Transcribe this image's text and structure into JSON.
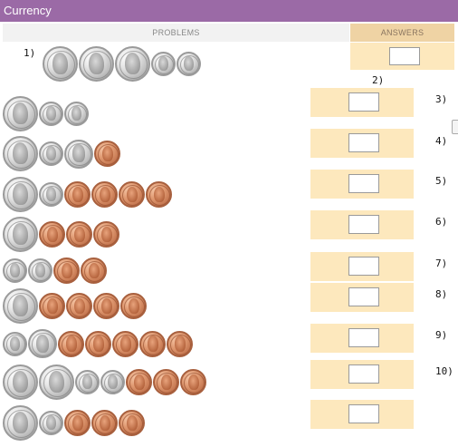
{
  "title": "Currency",
  "headers": {
    "problems": "PROBLEMS",
    "answers": "ANSWERS"
  },
  "coin_icons": {
    "quarter": "quarter-coin-icon",
    "dime": "dime-coin-icon",
    "nickel": "nickel-coin-icon",
    "penny": "penny-coin-icon"
  },
  "colors": {
    "title_bar": "#9b6aa6",
    "answer_header": "#efd3a4",
    "answer_cell": "#fde8bd",
    "problems_header": "#f2f2f2"
  },
  "problems": [
    {
      "label": "1)",
      "coins": [
        "quarter",
        "quarter",
        "quarter",
        "dime",
        "dime"
      ],
      "answer": ""
    },
    {
      "label": "2)",
      "coins": [
        "quarter",
        "dime",
        "dime"
      ],
      "answer": ""
    },
    {
      "label": "3)",
      "coins": [
        "quarter",
        "dime",
        "nickel",
        "penny"
      ],
      "answer": ""
    },
    {
      "label": "4)",
      "coins": [
        "quarter",
        "dime",
        "penny",
        "penny",
        "penny",
        "penny"
      ],
      "answer": ""
    },
    {
      "label": "5)",
      "coins": [
        "quarter",
        "penny",
        "penny",
        "penny"
      ],
      "answer": ""
    },
    {
      "label": "6)",
      "coins": [
        "dime",
        "dime",
        "penny",
        "penny"
      ],
      "answer": ""
    },
    {
      "label": "7)",
      "coins": [
        "quarter",
        "penny",
        "penny",
        "penny",
        "penny"
      ],
      "answer": ""
    },
    {
      "label": "8)",
      "coins": [
        "dime",
        "nickel",
        "penny",
        "penny",
        "penny",
        "penny",
        "penny"
      ],
      "answer": ""
    },
    {
      "label": "9)",
      "coins": [
        "quarter",
        "quarter",
        "dime",
        "dime",
        "penny",
        "penny",
        "penny"
      ],
      "answer": ""
    },
    {
      "label": "10)",
      "coins": [
        "quarter",
        "dime",
        "penny",
        "penny",
        "penny"
      ],
      "answer": ""
    }
  ]
}
